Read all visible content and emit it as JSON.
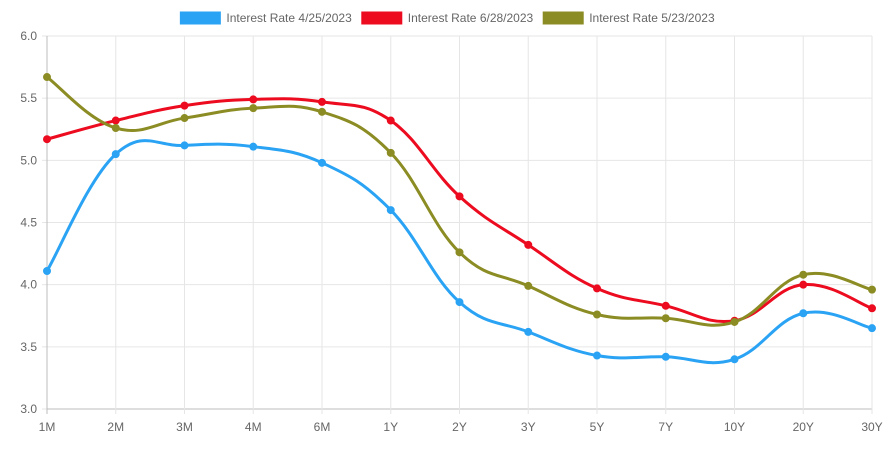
{
  "chart_data": {
    "type": "line",
    "categories": [
      "1M",
      "2M",
      "3M",
      "4M",
      "6M",
      "1Y",
      "2Y",
      "3Y",
      "5Y",
      "7Y",
      "10Y",
      "20Y",
      "30Y"
    ],
    "series": [
      {
        "name": "Interest Rate 4/25/2023",
        "color": "#2aa3f4",
        "values": [
          4.11,
          5.05,
          5.12,
          5.11,
          4.98,
          4.6,
          3.86,
          3.62,
          3.43,
          3.42,
          3.4,
          3.77,
          3.65
        ]
      },
      {
        "name": "Interest Rate 6/28/2023",
        "color": "#ec0b1f",
        "values": [
          5.17,
          5.32,
          5.44,
          5.49,
          5.47,
          5.32,
          4.71,
          4.32,
          3.97,
          3.83,
          3.71,
          4.0,
          3.81
        ]
      },
      {
        "name": "Interest Rate 5/23/2023",
        "color": "#8c8c24",
        "values": [
          5.67,
          5.26,
          5.34,
          5.42,
          5.39,
          5.06,
          4.26,
          3.99,
          3.76,
          3.73,
          3.7,
          4.08,
          3.96
        ]
      }
    ],
    "ylim": [
      3.0,
      6.0
    ],
    "yticks": [
      "3.0",
      "3.5",
      "4.0",
      "4.5",
      "5.0",
      "5.5",
      "6.0"
    ],
    "ytick_values": [
      3.0,
      3.5,
      4.0,
      4.5,
      5.0,
      5.5,
      6.0
    ],
    "grid": true,
    "legend": "top-center",
    "title": "",
    "xlabel": "",
    "ylabel": ""
  }
}
